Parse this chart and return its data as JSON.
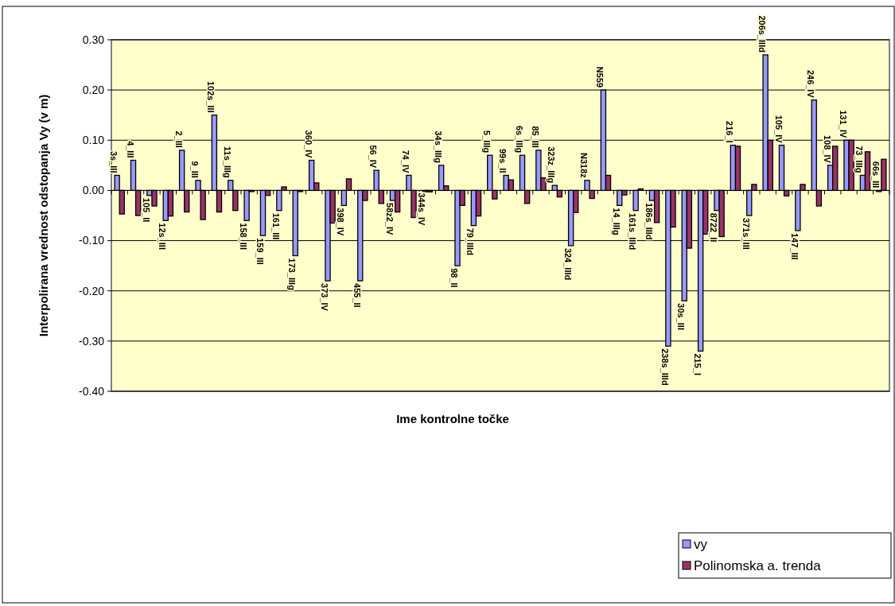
{
  "chart_data": {
    "type": "bar",
    "xlabel": "Ime kontrolne točke",
    "ylabel": "Interpolirana vrednost odstopanja Vy (v m)",
    "categories": [
      "3s_III",
      "4_III",
      "105_II",
      "12s_III",
      "2_III",
      "9_III",
      "102s_III",
      "11s_IIIg",
      "158_III",
      "159_III",
      "161_III",
      "173_IIIg",
      "360_IV",
      "373_IV",
      "398_IV",
      "455_II",
      "56_IV",
      "58z2_IV",
      "74_IV",
      "344s_IV",
      "34s_IIIg",
      "98_II",
      "79_IIId",
      "5_IIIg",
      "99s_II",
      "6s_IIIg",
      "85_III",
      "323z_IIIg",
      "324_IIId",
      "N318z",
      "N559",
      "14_IIIg",
      "161s_IIId",
      "186s_IIId",
      "238s_IIId",
      "30s_III",
      "215_I",
      "8722_II",
      "216_I",
      "371s_III",
      "206s_IIId",
      "105_IV",
      "147_III",
      "246_IV",
      "108_IV",
      "131_IV",
      "73_IIIg",
      "66s_III"
    ],
    "series": [
      {
        "name": "vy",
        "color": "#9999ff",
        "values": [
          0.03,
          0.06,
          -0.01,
          -0.06,
          0.08,
          0.02,
          0.15,
          0.02,
          -0.06,
          -0.09,
          -0.04,
          -0.13,
          0.06,
          -0.18,
          -0.03,
          -0.18,
          0.04,
          -0.02,
          0.03,
          0,
          0.05,
          -0.15,
          -0.07,
          0.07,
          0.03,
          0.07,
          0.08,
          0.01,
          -0.11,
          0.02,
          0.2,
          -0.03,
          -0.04,
          -0.02,
          -0.31,
          -0.22,
          -0.32,
          -0.04,
          0.09,
          -0.05,
          0.27,
          0.09,
          -0.08,
          0.18,
          0.05,
          0.1,
          0.03,
          0
        ]
      },
      {
        "name": "Polinomska a. trenda",
        "color": "#993366",
        "values": [
          -0.047,
          -0.05,
          -0.031,
          -0.051,
          -0.043,
          -0.058,
          -0.043,
          -0.04,
          -0.002,
          -0.01,
          0.007,
          -0.002,
          0.015,
          -0.065,
          0.023,
          -0.02,
          -0.026,
          -0.043,
          -0.054,
          -0.003,
          0.009,
          -0.03,
          -0.051,
          -0.017,
          0.021,
          -0.026,
          0.025,
          -0.013,
          -0.044,
          -0.016,
          0.03,
          -0.009,
          0.003,
          -0.064,
          -0.073,
          -0.115,
          -0.087,
          -0.092,
          0.088,
          0.012,
          0.1,
          -0.011,
          0.012,
          -0.031,
          0.088,
          0.1,
          0.077,
          0.062
        ]
      }
    ],
    "ylim": [
      -0.4,
      0.3
    ],
    "yticks": [
      {
        "value": -0.4,
        "label": "-0.40"
      },
      {
        "value": -0.3,
        "label": "-0.30"
      },
      {
        "value": -0.2,
        "label": "-0.20"
      },
      {
        "value": -0.1,
        "label": "-0.10"
      },
      {
        "value": 0,
        "label": "0.00"
      },
      {
        "value": 0.1,
        "label": "0.10"
      },
      {
        "value": 0.2,
        "label": "0.20"
      },
      {
        "value": 0.3,
        "label": "0.30"
      }
    ],
    "grid": "y",
    "legend": "bottom right"
  }
}
